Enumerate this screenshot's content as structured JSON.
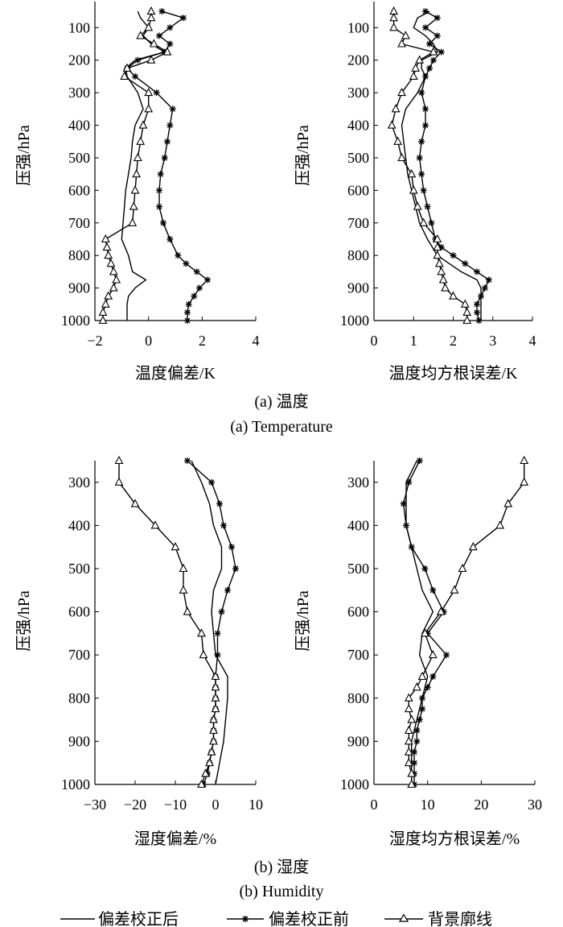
{
  "legend": {
    "after": "偏差校正后",
    "before": "偏差校正前",
    "background": "背景廓线"
  },
  "captions": {
    "temperature_cn": "(a) 温度",
    "temperature_en": "(a) Temperature",
    "humidity_cn": "(b) 湿度",
    "humidity_en": "(b) Humidity"
  },
  "chart_data": [
    {
      "id": "temp-bias",
      "type": "line",
      "title": "",
      "xlabel": "温度偏差/K",
      "ylabel": "压强/hPa",
      "xlim": [
        -2,
        4
      ],
      "xticks": [
        -2,
        0,
        2,
        4
      ],
      "xtick_labels": [
        "−2",
        "0",
        "2",
        "4"
      ],
      "ylim": [
        20,
        1000
      ],
      "yticks": [
        100,
        200,
        300,
        400,
        500,
        600,
        700,
        800,
        900,
        1000
      ],
      "series": [
        {
          "name": "偏差校正后",
          "marker": "none",
          "pressure": [
            50,
            70,
            100,
            125,
            150,
            175,
            200,
            225,
            250,
            300,
            350,
            400,
            450,
            500,
            550,
            600,
            650,
            700,
            750,
            800,
            850,
            875,
            900,
            925,
            950,
            975,
            1000
          ],
          "values": [
            -0.4,
            -0.3,
            0,
            -0.2,
            0.1,
            0.6,
            -0.5,
            -0.85,
            -0.8,
            -0.4,
            -0.2,
            -0.5,
            -0.6,
            -0.65,
            -0.75,
            -0.85,
            -0.9,
            -0.95,
            -1.0,
            -0.75,
            -0.6,
            -0.1,
            -0.5,
            -0.75,
            -0.8,
            -0.8,
            -0.8
          ]
        },
        {
          "name": "偏差校正前",
          "marker": "star",
          "pressure": [
            50,
            70,
            100,
            125,
            150,
            175,
            200,
            225,
            250,
            300,
            350,
            400,
            450,
            500,
            550,
            600,
            650,
            700,
            750,
            800,
            825,
            850,
            875,
            900,
            925,
            950,
            975,
            1000
          ],
          "values": [
            0.5,
            1.3,
            0.8,
            0.4,
            0.8,
            0.6,
            -0.4,
            -0.8,
            -0.5,
            0.3,
            0.9,
            0.8,
            0.7,
            0.6,
            0.45,
            0.4,
            0.4,
            0.55,
            0.8,
            1.1,
            1.4,
            1.8,
            2.2,
            1.9,
            1.7,
            1.5,
            1.45,
            1.45
          ]
        },
        {
          "name": "背景廓线",
          "marker": "triangle",
          "pressure": [
            50,
            70,
            100,
            125,
            150,
            175,
            200,
            225,
            250,
            300,
            350,
            400,
            450,
            500,
            550,
            600,
            650,
            700,
            750,
            775,
            800,
            825,
            850,
            875,
            900,
            925,
            950,
            975,
            1000
          ],
          "values": [
            0.1,
            0.1,
            0,
            -0.3,
            0.2,
            0.7,
            0.1,
            -0.8,
            -0.9,
            0.0,
            0.0,
            -0.2,
            -0.3,
            -0.4,
            -0.45,
            -0.5,
            -0.55,
            -0.6,
            -1.6,
            -1.55,
            -1.5,
            -1.4,
            -1.3,
            -1.2,
            -1.3,
            -1.5,
            -1.6,
            -1.7,
            -1.7
          ]
        }
      ]
    },
    {
      "id": "temp-rmse",
      "type": "line",
      "title": "",
      "xlabel": "温度均方根误差/K",
      "ylabel": "压强/hPa",
      "xlim": [
        0,
        4
      ],
      "xticks": [
        0,
        1,
        2,
        3,
        4
      ],
      "xtick_labels": [
        "0",
        "1",
        "2",
        "3",
        "4"
      ],
      "ylim": [
        20,
        1000
      ],
      "yticks": [
        100,
        200,
        300,
        400,
        500,
        600,
        700,
        800,
        900,
        1000
      ],
      "series": [
        {
          "name": "偏差校正后",
          "marker": "none",
          "pressure": [
            50,
            70,
            100,
            125,
            150,
            175,
            200,
            225,
            250,
            300,
            350,
            400,
            450,
            500,
            550,
            600,
            650,
            700,
            750,
            800,
            850,
            875,
            900,
            925,
            950,
            975,
            1000
          ],
          "values": [
            1.4,
            1.1,
            1.0,
            1.3,
            1.5,
            1.6,
            1.2,
            1.2,
            1.3,
            1.1,
            0.8,
            0.7,
            0.75,
            0.8,
            0.85,
            0.95,
            1.05,
            1.15,
            1.35,
            1.6,
            2.2,
            2.6,
            2.7,
            2.7,
            2.7,
            2.7,
            2.7
          ]
        },
        {
          "name": "偏差校正前",
          "marker": "star",
          "pressure": [
            50,
            70,
            100,
            125,
            150,
            175,
            200,
            225,
            250,
            300,
            350,
            400,
            450,
            500,
            550,
            600,
            650,
            700,
            750,
            775,
            800,
            825,
            850,
            875,
            900,
            925,
            950,
            975,
            1000
          ],
          "values": [
            1.3,
            1.6,
            1.3,
            1.6,
            1.4,
            1.7,
            1.5,
            1.4,
            1.3,
            1.2,
            1.3,
            1.3,
            1.2,
            1.15,
            1.2,
            1.25,
            1.35,
            1.45,
            1.55,
            1.7,
            2.0,
            2.3,
            2.6,
            2.9,
            2.8,
            2.7,
            2.6,
            2.6,
            2.65
          ]
        },
        {
          "name": "背景廓线",
          "marker": "triangle",
          "pressure": [
            50,
            70,
            100,
            125,
            150,
            175,
            200,
            225,
            250,
            300,
            350,
            400,
            450,
            500,
            550,
            600,
            650,
            700,
            750,
            775,
            800,
            825,
            850,
            875,
            900,
            925,
            950,
            975,
            1000
          ],
          "values": [
            0.5,
            0.5,
            0.5,
            0.8,
            0.7,
            1.5,
            1.15,
            1.05,
            1.0,
            0.7,
            0.55,
            0.45,
            0.6,
            0.7,
            0.95,
            1.0,
            1.1,
            1.25,
            1.6,
            1.6,
            1.6,
            1.65,
            1.7,
            1.75,
            1.8,
            2.0,
            2.3,
            2.35,
            2.35
          ]
        }
      ]
    },
    {
      "id": "hum-bias",
      "type": "line",
      "title": "",
      "xlabel": "湿度偏差/%",
      "ylabel": "压强/hPa",
      "xlim": [
        -30,
        10
      ],
      "xticks": [
        -30,
        -20,
        -10,
        0,
        10
      ],
      "xtick_labels": [
        "−30",
        "−20",
        "−10",
        "0",
        "10"
      ],
      "ylim": [
        250,
        1000
      ],
      "yticks": [
        300,
        400,
        500,
        600,
        700,
        800,
        900,
        1000
      ],
      "series": [
        {
          "name": "偏差校正后",
          "marker": "none",
          "pressure": [
            250,
            300,
            350,
            400,
            450,
            500,
            550,
            600,
            650,
            700,
            750,
            800,
            850,
            900,
            950,
            1000
          ],
          "values": [
            -6,
            -3.5,
            -1.5,
            -0.5,
            1.5,
            1.5,
            -0.5,
            -1.0,
            -0.5,
            0,
            3,
            3,
            2.5,
            2,
            1,
            0
          ]
        },
        {
          "name": "偏差校正前",
          "marker": "star",
          "pressure": [
            250,
            300,
            350,
            400,
            450,
            500,
            550,
            600,
            650,
            700,
            750,
            775,
            800,
            825,
            850,
            875,
            900,
            925,
            950,
            975,
            1000
          ],
          "values": [
            -7,
            -1,
            1,
            2,
            4,
            5,
            3,
            1.5,
            0.5,
            0.5,
            0,
            0,
            0,
            0,
            -0.5,
            -0.5,
            -0.5,
            -1,
            -1.5,
            -2,
            -3
          ]
        },
        {
          "name": "背景廓线",
          "marker": "triangle",
          "pressure": [
            250,
            300,
            350,
            400,
            450,
            500,
            550,
            600,
            650,
            700,
            750,
            775,
            800,
            825,
            850,
            875,
            900,
            925,
            950,
            975,
            1000
          ],
          "values": [
            -24,
            -24,
            -20,
            -15,
            -10,
            -8,
            -8,
            -7,
            -3.5,
            -3,
            0,
            0,
            0,
            0,
            -0.5,
            -0.5,
            -0.5,
            -1,
            -1.5,
            -2.5,
            -3.5
          ]
        }
      ]
    },
    {
      "id": "hum-rmse",
      "type": "line",
      "title": "",
      "xlabel": "湿度均方根误差/%",
      "ylabel": "压强/hPa",
      "xlim": [
        0,
        30
      ],
      "xticks": [
        0,
        10,
        20,
        30
      ],
      "xtick_labels": [
        "0",
        "10",
        "20",
        "30"
      ],
      "ylim": [
        250,
        1000
      ],
      "yticks": [
        300,
        400,
        500,
        600,
        700,
        800,
        900,
        1000
      ],
      "series": [
        {
          "name": "偏差校正后",
          "marker": "none",
          "pressure": [
            250,
            300,
            350,
            400,
            450,
            500,
            550,
            600,
            650,
            700,
            750,
            800,
            850,
            900,
            950,
            1000
          ],
          "values": [
            8,
            6,
            6,
            6,
            7,
            8,
            9,
            11,
            9,
            8.5,
            10,
            9,
            8,
            7,
            7,
            7
          ]
        },
        {
          "name": "偏差校正前",
          "marker": "star",
          "pressure": [
            250,
            300,
            350,
            400,
            450,
            500,
            550,
            600,
            650,
            700,
            750,
            775,
            800,
            825,
            850,
            875,
            900,
            925,
            950,
            975,
            1000
          ],
          "values": [
            8.5,
            6.5,
            5.5,
            6,
            7,
            9.5,
            11,
            13,
            10,
            13.5,
            11,
            10,
            9,
            9,
            8.5,
            8,
            8,
            7.5,
            7.5,
            7.5,
            7.5
          ]
        },
        {
          "name": "背景廓线",
          "marker": "triangle",
          "pressure": [
            250,
            300,
            350,
            400,
            450,
            500,
            550,
            600,
            650,
            700,
            750,
            775,
            800,
            825,
            850,
            875,
            900,
            925,
            950,
            975,
            1000
          ],
          "values": [
            28,
            28,
            25,
            23.5,
            18.5,
            16.5,
            15,
            12.5,
            9.5,
            11,
            9,
            8,
            6.5,
            6.5,
            7,
            6.5,
            6.5,
            6.5,
            6.5,
            7,
            7
          ]
        }
      ]
    }
  ]
}
